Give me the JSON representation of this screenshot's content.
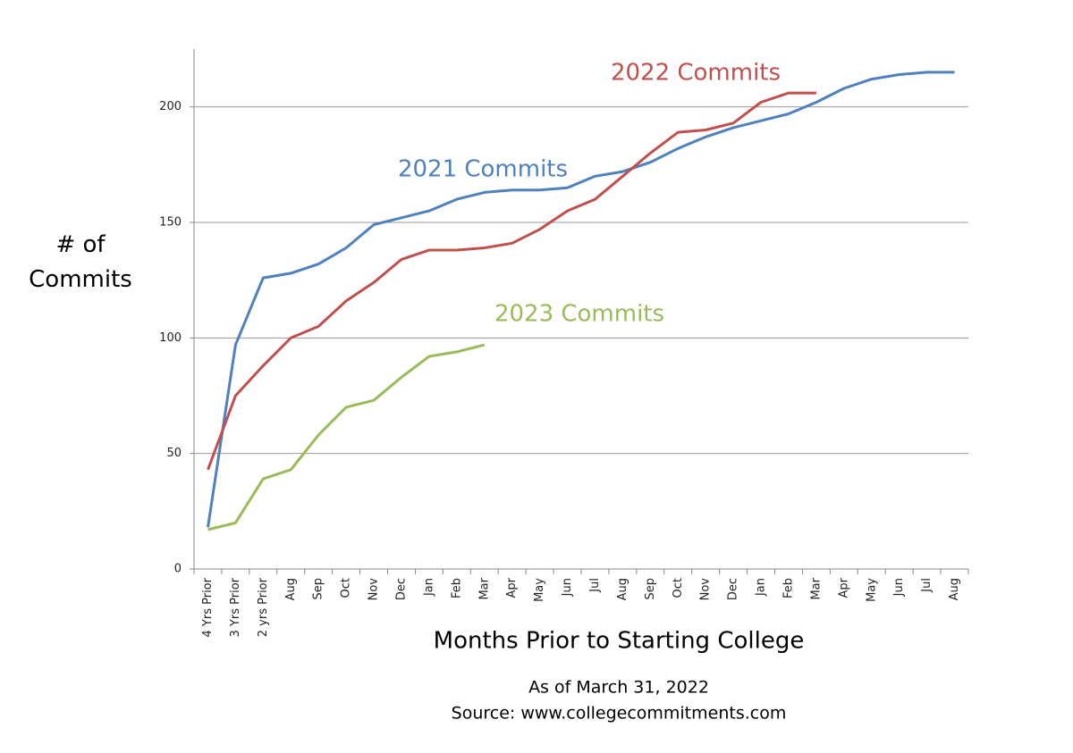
{
  "chart_data": {
    "type": "line",
    "y_label": "# of Commits",
    "x_label": "Months Prior to Starting College",
    "notes": [
      "As of March 31, 2022",
      "Source: www.collegecommitments.com"
    ],
    "categories": [
      "4 Yrs Prior",
      "3 Yrs Prior",
      "2 yrs Prior",
      "Aug",
      "Sep",
      "Oct",
      "Nov",
      "Dec",
      "Jan",
      "Feb",
      "Mar",
      "Apr",
      "May",
      "Jun",
      "Jul",
      "Aug",
      "Sep",
      "Oct",
      "Nov",
      "Dec",
      "Jan",
      "Feb",
      "Mar",
      "Apr",
      "May",
      "Jun",
      "Jul",
      "Aug"
    ],
    "series": [
      {
        "name": "2021 Commits",
        "color": "#4f81bd",
        "values": [
          18,
          97,
          126,
          128,
          132,
          139,
          149,
          152,
          155,
          160,
          163,
          164,
          164,
          165,
          170,
          172,
          176,
          182,
          187,
          191,
          194,
          197,
          202,
          208,
          212,
          214,
          215,
          215
        ]
      },
      {
        "name": "2022 Commits",
        "color": "#c0504d",
        "values": [
          43,
          75,
          88,
          100,
          105,
          116,
          124,
          134,
          138,
          138,
          139,
          141,
          147,
          155,
          160,
          170,
          180,
          189,
          190,
          193,
          202,
          206,
          206,
          null,
          null,
          null,
          null,
          null
        ]
      },
      {
        "name": "2023 Commits",
        "color": "#9bbb59",
        "values": [
          17,
          20,
          39,
          43,
          58,
          70,
          73,
          83,
          92,
          94,
          97,
          null,
          null,
          null,
          null,
          null,
          null,
          null,
          null,
          null,
          null,
          null,
          null,
          null,
          null,
          null,
          null,
          null
        ]
      }
    ],
    "ylim": [
      0,
      225
    ],
    "yticks": [
      0,
      50,
      100,
      150,
      200
    ],
    "grid": true
  }
}
